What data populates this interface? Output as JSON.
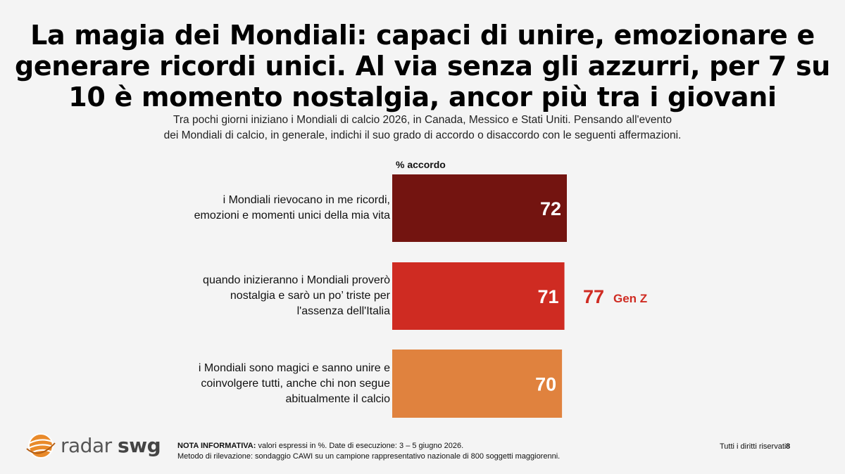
{
  "title": "La magia dei Mondiali: capaci di unire, emozionare e generare ricordi unici. Al via senza gli azzurri, per 7 su 10 è momento nostalgia, ancor più tra i giovani",
  "subtitle_line1": "Tra pochi giorni iniziano i Mondiali di calcio 2026, in Canada, Messico e Stati Uniti. Pensando all'evento",
  "subtitle_line2": "dei Mondiali di calcio, in generale, indichi il suo grado di accordo o disaccordo con le seguenti affermazioni.",
  "colors": {
    "bar1": "#731410",
    "bar2": "#cf2b22",
    "bar3": "#e0823e",
    "callout": "#cf2b22",
    "logo_orange": "#e98a2a"
  },
  "chart_data": {
    "type": "bar",
    "orientation": "horizontal",
    "value_header": "% accordo",
    "categories": [
      [
        "i Mondiali rievocano in me ricordi,",
        "emozioni e momenti unici della mia vita"
      ],
      [
        "quando inizieranno i Mondiali proverò",
        "nostalgia e sarò un po’ triste per",
        "l'assenza dell'Italia"
      ],
      [
        "i Mondiali sono magici e sanno unire e",
        "coinvolgere tutti, anche chi non segue",
        "abitualmente il calcio"
      ]
    ],
    "values": [
      72,
      71,
      70
    ],
    "value_labels": [
      "72",
      "71",
      "70"
    ],
    "callout": {
      "row": 1,
      "value": "77",
      "label": "Gen Z"
    }
  },
  "footer": {
    "note_label": "NOTA INFORMATIVA:",
    "note_line1": " valori espressi in %. Date di esecuzione: 3 – 5 giugno 2026.",
    "note_line2": "Metodo di rilevazione: sondaggio CAWI su un campione rappresentativo nazionale di 800 soggetti maggiorenni.",
    "rights": "Tutti i diritti riservati",
    "page_number": "8"
  },
  "logo": {
    "word1": "radar",
    "word2": "swg",
    "icon": "globe-logo-icon"
  }
}
